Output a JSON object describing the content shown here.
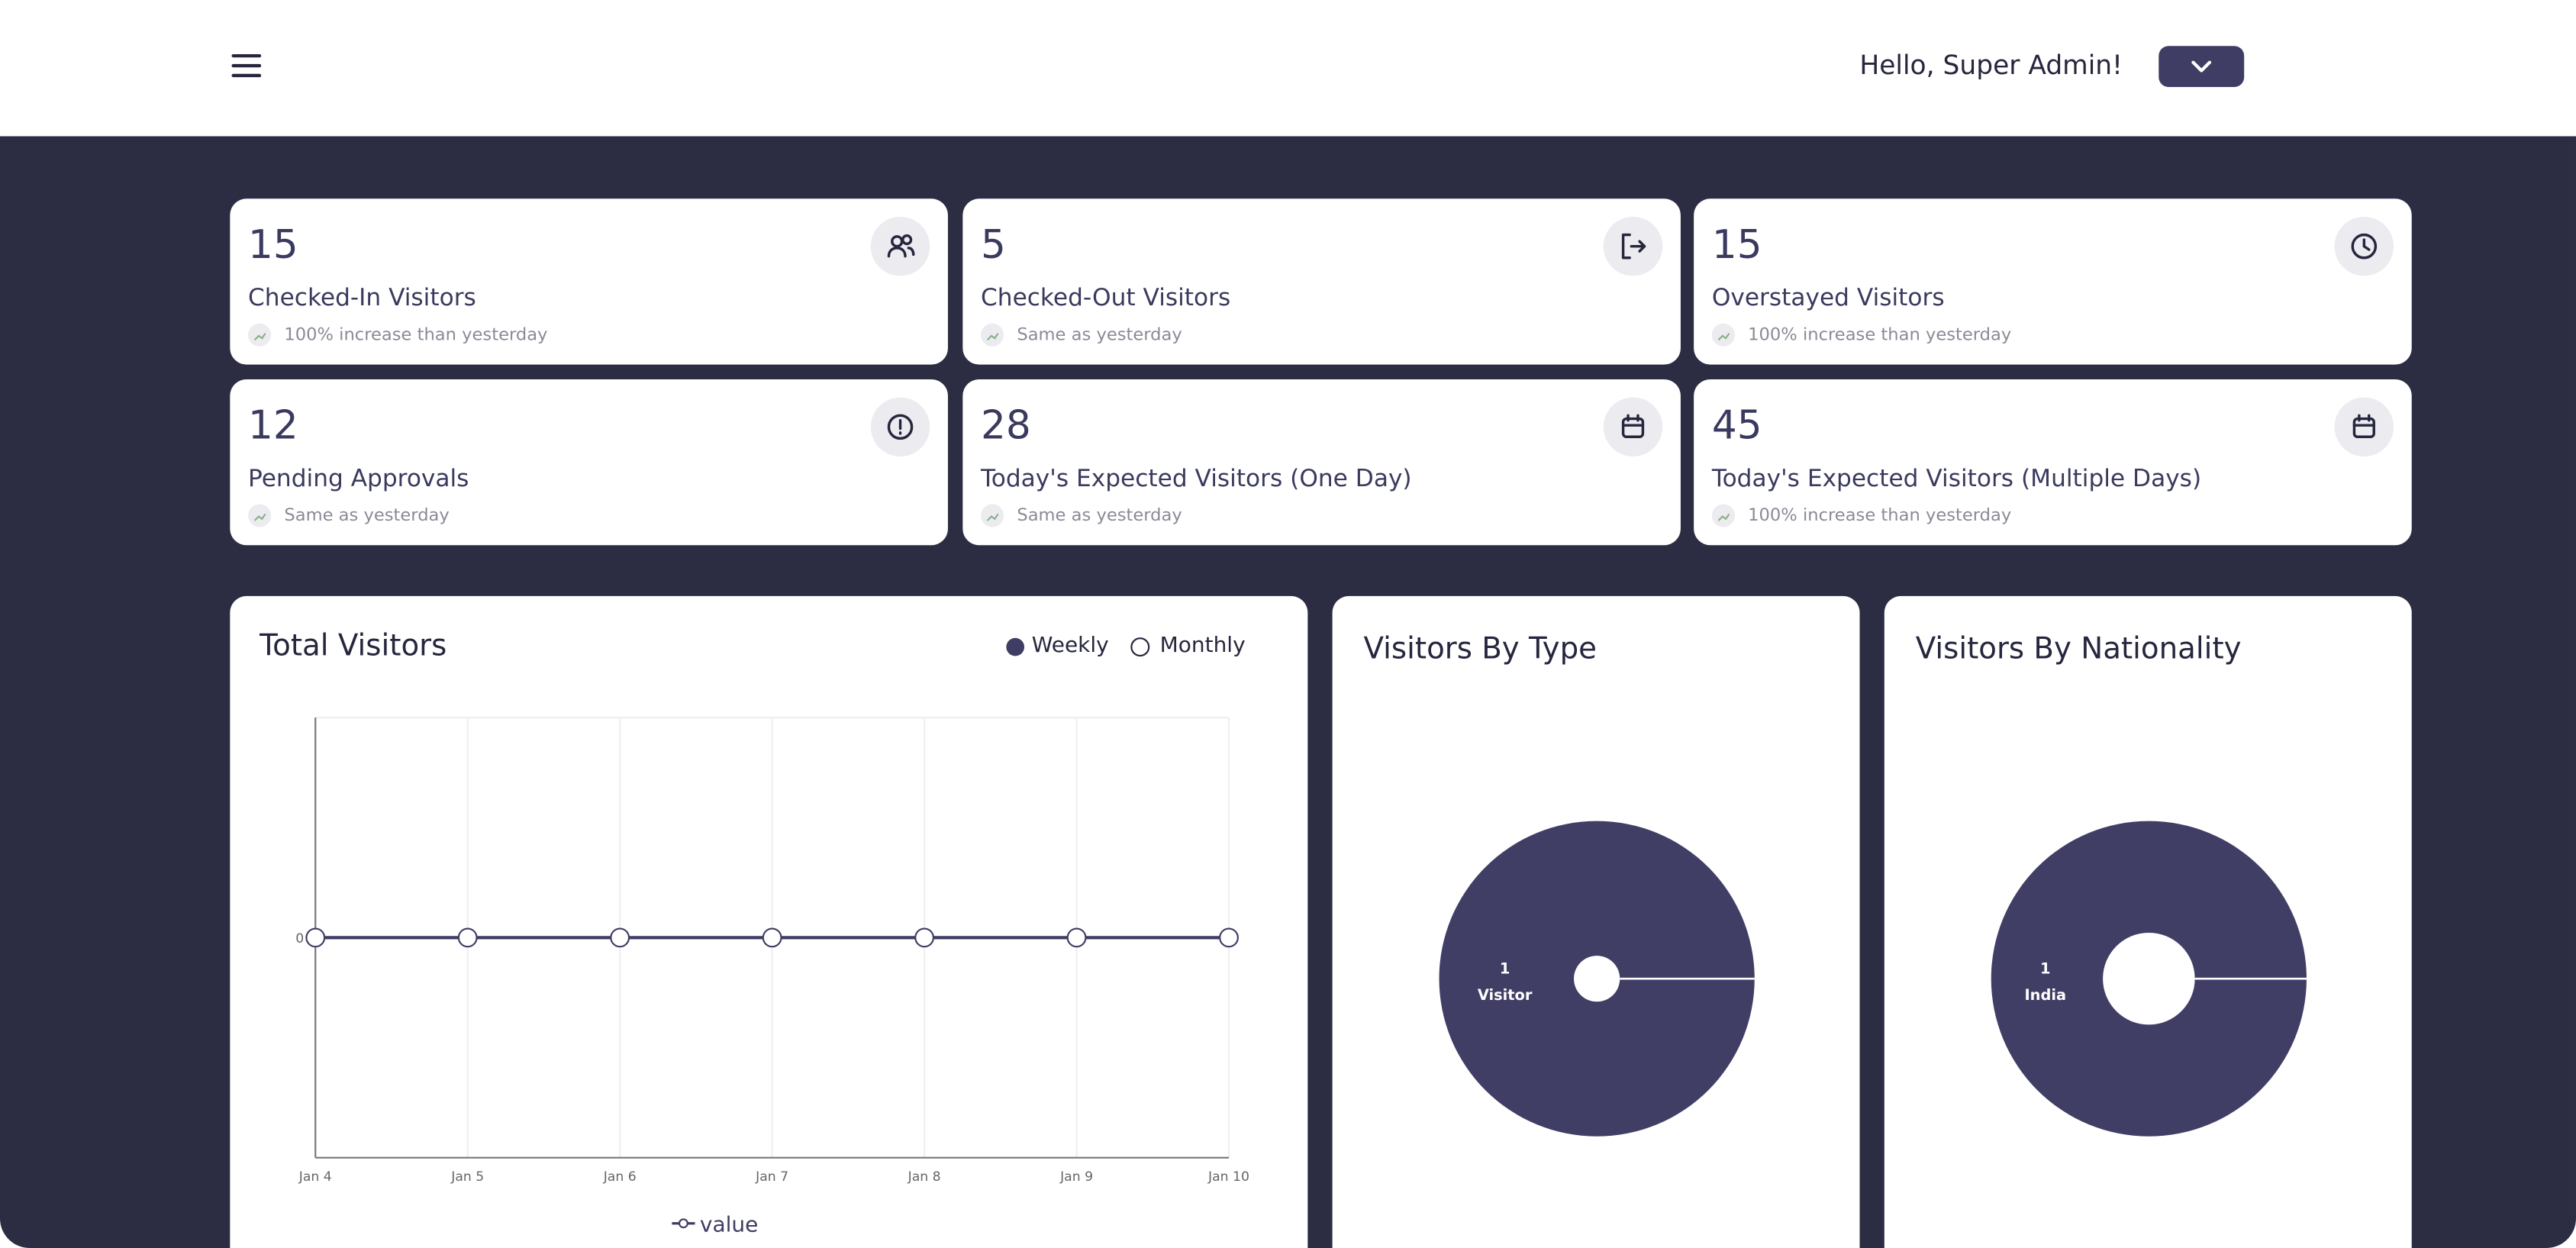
{
  "header": {
    "greeting": "Hello, Super Admin!"
  },
  "stats": [
    {
      "value": 15,
      "label": "Checked-In Visitors",
      "trend": "100% increase than yesterday"
    },
    {
      "value": 5,
      "label": "Checked-Out Visitors",
      "trend": "Same as yesterday"
    },
    {
      "value": 15,
      "label": "Overstayed Visitors",
      "trend": "100% increase than yesterday"
    },
    {
      "value": 12,
      "label": "Pending Approvals",
      "trend": "Same as yesterday"
    },
    {
      "value": 28,
      "label": "Today's Expected Visitors (One Day)",
      "trend": "Same as yesterday"
    },
    {
      "value": 45,
      "label": "Today's Expected Visitors (Multiple Days)",
      "trend": "100% increase than yesterday"
    }
  ],
  "total_visitors": {
    "title": "Total Visitors",
    "toggle": [
      "Weekly",
      "Monthly"
    ],
    "chart_data": {
      "type": "line",
      "categories": [
        "Jan 4",
        "Jan 5",
        "Jan 6",
        "Jan 7",
        "Jan 8",
        "Jan 9",
        "Jan 10"
      ],
      "series": [
        {
          "name": "value",
          "color": "#3f3d63",
          "values": [
            0,
            0,
            0,
            0,
            0,
            0,
            0
          ]
        }
      ],
      "yticks": [
        0
      ],
      "grid": true
    }
  },
  "visitors_by_type": {
    "title": "Visitors By Type",
    "chart_data": {
      "type": "pie",
      "categories": [
        "Visitor"
      ],
      "values": [
        1
      ],
      "color": "#413e66"
    }
  },
  "visitors_by_nationality": {
    "title": "Visitors By Nationality",
    "chart_data": {
      "type": "pie",
      "categories": [
        "India"
      ],
      "values": [
        1
      ],
      "color": "#413e66"
    }
  }
}
